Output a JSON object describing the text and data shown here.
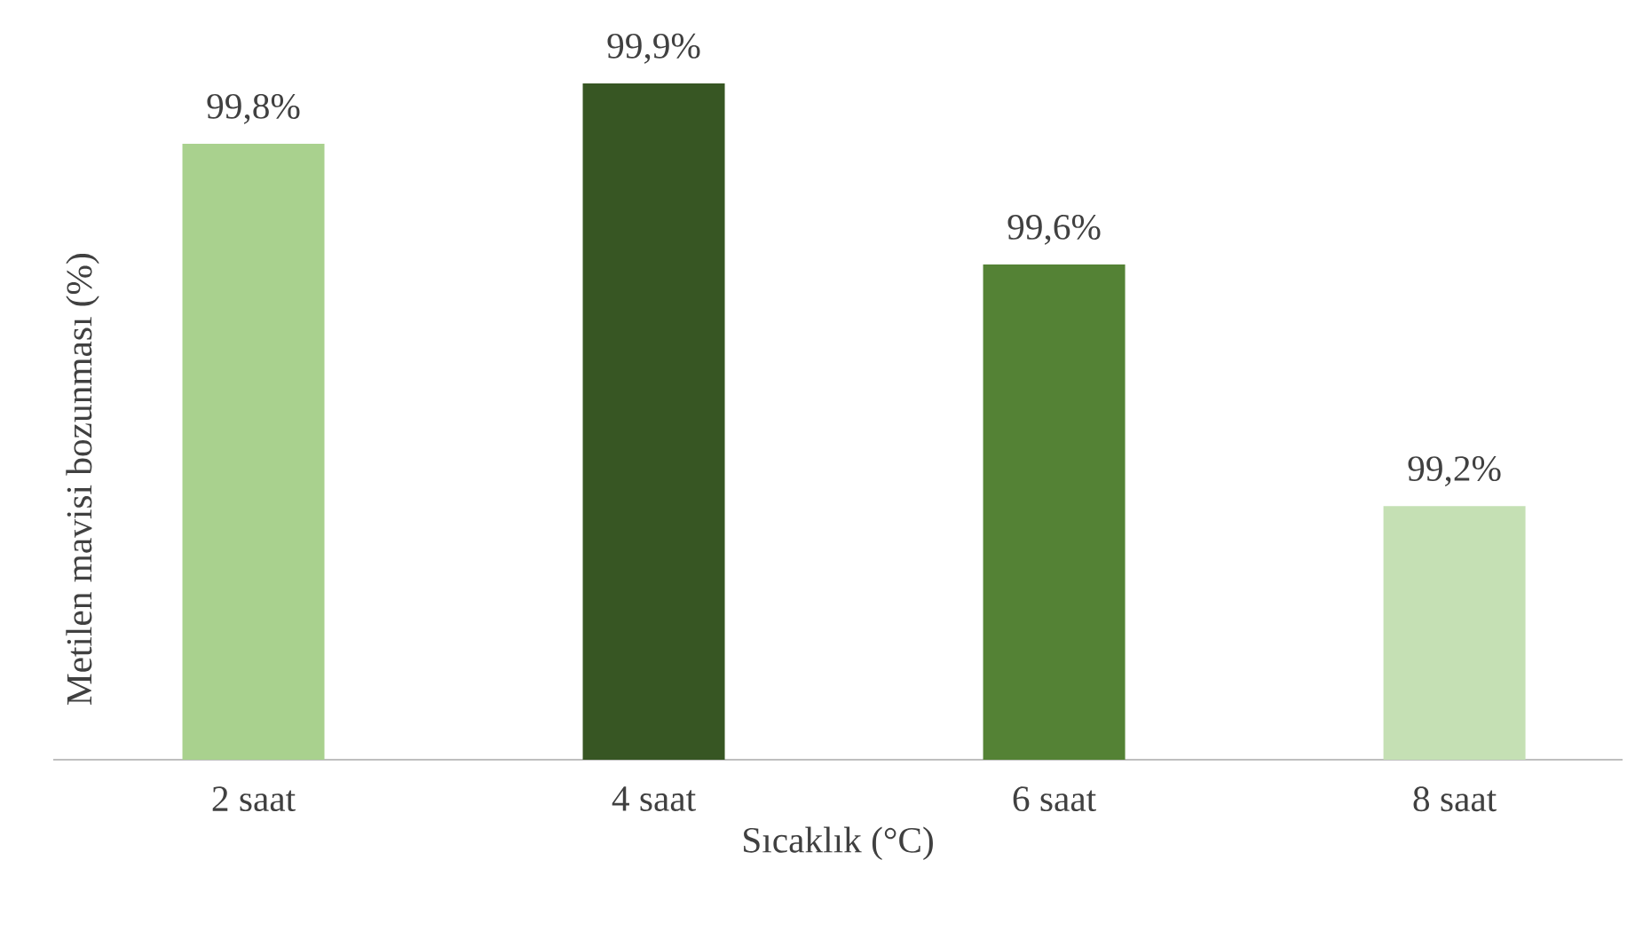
{
  "chart_data": {
    "type": "bar",
    "xlabel": "Sıcaklık (°C)",
    "ylabel": "Metilen mavisi bozunması (%)",
    "categories": [
      "2 saat",
      "4 saat",
      "6 saat",
      "8 saat"
    ],
    "values": [
      99.8,
      99.9,
      99.6,
      99.2
    ],
    "colors": [
      "#a9d18e",
      "#375623",
      "#548235",
      "#c5e0b4"
    ],
    "value_labels": [
      "99,8%",
      "99,9%",
      "99,6%",
      "99,2%"
    ],
    "ylim": [
      98.78,
      99.9
    ],
    "tick_labels": "x",
    "grid": false
  }
}
